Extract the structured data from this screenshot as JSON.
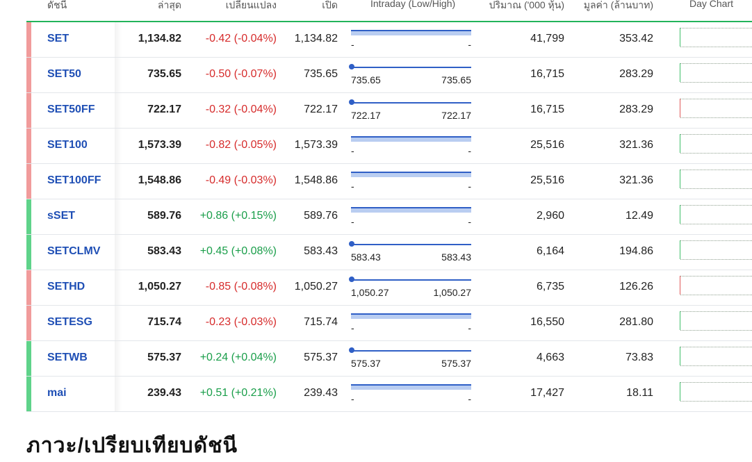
{
  "header": {
    "symbol": "ดัชนี",
    "last": "ล่าสุด",
    "change": "เปลี่ยนแปลง",
    "open": "เปิด",
    "intraday": "Intraday (Low/High)",
    "volume": "ปริมาณ ('000 หุ้น)",
    "value": "มูลค่า (ล้านบาท)",
    "day_chart": "Day Chart"
  },
  "rows": [
    {
      "symbol": "SET",
      "last": "1,134.82",
      "change": "-0.42 (-0.04%)",
      "open": "1,134.82",
      "low": "-",
      "high": "-",
      "volume": "41,799",
      "value": "353.42",
      "dir": "down",
      "range_style": "flat",
      "chart": "green"
    },
    {
      "symbol": "SET50",
      "last": "735.65",
      "change": "-0.50 (-0.07%)",
      "open": "735.65",
      "low": "735.65",
      "high": "735.65",
      "volume": "16,715",
      "value": "283.29",
      "dir": "down",
      "range_style": "dot",
      "chart": "green"
    },
    {
      "symbol": "SET50FF",
      "last": "722.17",
      "change": "-0.32 (-0.04%)",
      "open": "722.17",
      "low": "722.17",
      "high": "722.17",
      "volume": "16,715",
      "value": "283.29",
      "dir": "down",
      "range_style": "dot",
      "chart": "red"
    },
    {
      "symbol": "SET100",
      "last": "1,573.39",
      "change": "-0.82 (-0.05%)",
      "open": "1,573.39",
      "low": "-",
      "high": "-",
      "volume": "25,516",
      "value": "321.36",
      "dir": "down",
      "range_style": "flat",
      "chart": "green"
    },
    {
      "symbol": "SET100FF",
      "last": "1,548.86",
      "change": "-0.49 (-0.03%)",
      "open": "1,548.86",
      "low": "-",
      "high": "-",
      "volume": "25,516",
      "value": "321.36",
      "dir": "down",
      "range_style": "flat",
      "chart": "green"
    },
    {
      "symbol": "sSET",
      "last": "589.76",
      "change": "+0.86 (+0.15%)",
      "open": "589.76",
      "low": "-",
      "high": "-",
      "volume": "2,960",
      "value": "12.49",
      "dir": "up",
      "range_style": "flat",
      "chart": "green"
    },
    {
      "symbol": "SETCLMV",
      "last": "583.43",
      "change": "+0.45 (+0.08%)",
      "open": "583.43",
      "low": "583.43",
      "high": "583.43",
      "volume": "6,164",
      "value": "194.86",
      "dir": "up",
      "range_style": "dot",
      "chart": "green"
    },
    {
      "symbol": "SETHD",
      "last": "1,050.27",
      "change": "-0.85 (-0.08%)",
      "open": "1,050.27",
      "low": "1,050.27",
      "high": "1,050.27",
      "volume": "6,735",
      "value": "126.26",
      "dir": "down",
      "range_style": "dot",
      "chart": "red"
    },
    {
      "symbol": "SETESG",
      "last": "715.74",
      "change": "-0.23 (-0.03%)",
      "open": "715.74",
      "low": "-",
      "high": "-",
      "volume": "16,550",
      "value": "281.80",
      "dir": "down",
      "range_style": "flat",
      "chart": "green"
    },
    {
      "symbol": "SETWB",
      "last": "575.37",
      "change": "+0.24 (+0.04%)",
      "open": "575.37",
      "low": "575.37",
      "high": "575.37",
      "volume": "4,663",
      "value": "73.83",
      "dir": "up",
      "range_style": "dot",
      "chart": "green"
    },
    {
      "symbol": "mai",
      "last": "239.43",
      "change": "+0.51 (+0.21%)",
      "open": "239.43",
      "low": "-",
      "high": "-",
      "volume": "17,427",
      "value": "18.11",
      "dir": "up",
      "range_style": "flat",
      "chart": "green"
    }
  ],
  "section_title": "ภาวะ/เปรียบเทียบดัชนี",
  "colors": {
    "up": "#1a9e4a",
    "down": "#d62b2b",
    "symbol": "#1f4fb5",
    "accent": "#22b45a"
  }
}
